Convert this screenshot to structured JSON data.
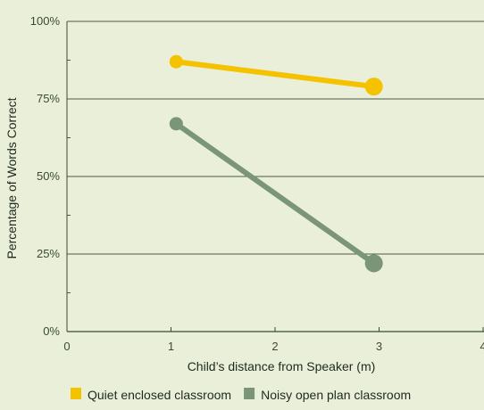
{
  "chart_data": {
    "type": "line",
    "xlabel": "Child’s distance from Speaker (m)",
    "ylabel": "Percentage of Words Correct",
    "xlim": [
      0,
      4
    ],
    "ylim": [
      0,
      100
    ],
    "x_ticks": [
      "0",
      "1",
      "2",
      "3",
      "4"
    ],
    "y_ticks": [
      "0%",
      "25%",
      "50%",
      "75%",
      "100%"
    ],
    "grid": "horizontal",
    "legend_position": "bottom",
    "series": [
      {
        "name": "Quiet enclosed classroom",
        "color": "#f5c200",
        "points": [
          {
            "x": 1.05,
            "y": 87
          },
          {
            "x": 2.95,
            "y": 79
          }
        ]
      },
      {
        "name": "Noisy open plan classroom",
        "color": "#7a9577",
        "points": [
          {
            "x": 1.05,
            "y": 67
          },
          {
            "x": 2.95,
            "y": 22
          }
        ]
      }
    ]
  }
}
